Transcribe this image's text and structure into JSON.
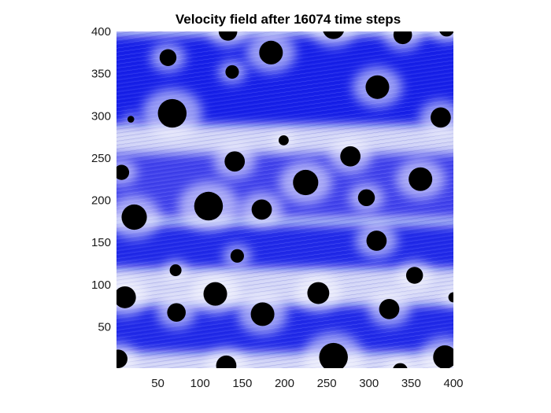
{
  "chart_data": {
    "type": "vector-field",
    "title": "Velocity field after 16074 time steps",
    "xlabel": "",
    "ylabel": "",
    "xlim": [
      1,
      400
    ],
    "ylim": [
      1,
      400
    ],
    "xticks": [
      50,
      100,
      150,
      200,
      250,
      300,
      350,
      400
    ],
    "yticks": [
      50,
      100,
      150,
      200,
      250,
      300,
      350,
      400
    ],
    "grid": false,
    "legend": "none",
    "colors": {
      "flow": "#0b16e8",
      "flow_light": "#c9cdf7",
      "obstacle": "#000000",
      "background": "#ffffff"
    },
    "flow_bands": [
      {
        "name": "top-channel",
        "y_min": 290,
        "y_max": 395,
        "intensity": 0.95
      },
      {
        "name": "upper-middle-channel",
        "y_min": 180,
        "y_max": 255,
        "intensity": 0.75
      },
      {
        "name": "middle-channel",
        "y_min": 120,
        "y_max": 170,
        "intensity": 0.9
      },
      {
        "name": "lower-channel",
        "y_min": 20,
        "y_max": 75,
        "intensity": 0.9
      }
    ],
    "obstacles": [
      {
        "x": 133,
        "y": 400,
        "r": 11
      },
      {
        "x": 258,
        "y": 404,
        "r": 13
      },
      {
        "x": 340,
        "y": 396,
        "r": 11
      },
      {
        "x": 392,
        "y": 403,
        "r": 9
      },
      {
        "x": 62,
        "y": 369,
        "r": 10
      },
      {
        "x": 184,
        "y": 375,
        "r": 14
      },
      {
        "x": 138,
        "y": 352,
        "r": 8
      },
      {
        "x": 310,
        "y": 334,
        "r": 14
      },
      {
        "x": 67,
        "y": 303,
        "r": 17
      },
      {
        "x": 18,
        "y": 296,
        "r": 4
      },
      {
        "x": 385,
        "y": 298,
        "r": 12
      },
      {
        "x": 199,
        "y": 271,
        "r": 6
      },
      {
        "x": 278,
        "y": 252,
        "r": 12
      },
      {
        "x": 141,
        "y": 246,
        "r": 12
      },
      {
        "x": 7,
        "y": 233,
        "r": 9
      },
      {
        "x": 225,
        "y": 221,
        "r": 15
      },
      {
        "x": 361,
        "y": 225,
        "r": 14
      },
      {
        "x": 297,
        "y": 203,
        "r": 10
      },
      {
        "x": 110,
        "y": 193,
        "r": 17
      },
      {
        "x": 173,
        "y": 189,
        "r": 12
      },
      {
        "x": 22,
        "y": 180,
        "r": 15
      },
      {
        "x": 309,
        "y": 152,
        "r": 12
      },
      {
        "x": 144,
        "y": 134,
        "r": 8
      },
      {
        "x": 71,
        "y": 117,
        "r": 7
      },
      {
        "x": 354,
        "y": 111,
        "r": 10
      },
      {
        "x": 240,
        "y": 90,
        "r": 13
      },
      {
        "x": 118,
        "y": 89,
        "r": 14
      },
      {
        "x": 11,
        "y": 85,
        "r": 13
      },
      {
        "x": 400,
        "y": 85,
        "r": 6
      },
      {
        "x": 324,
        "y": 71,
        "r": 12
      },
      {
        "x": 72,
        "y": 67,
        "r": 11
      },
      {
        "x": 174,
        "y": 65,
        "r": 14
      },
      {
        "x": 258,
        "y": 14,
        "r": 17
      },
      {
        "x": 131,
        "y": 4,
        "r": 12
      },
      {
        "x": 3,
        "y": 12,
        "r": 11
      },
      {
        "x": 390,
        "y": 14,
        "r": 14
      },
      {
        "x": 337,
        "y": -2,
        "r": 9
      }
    ]
  }
}
